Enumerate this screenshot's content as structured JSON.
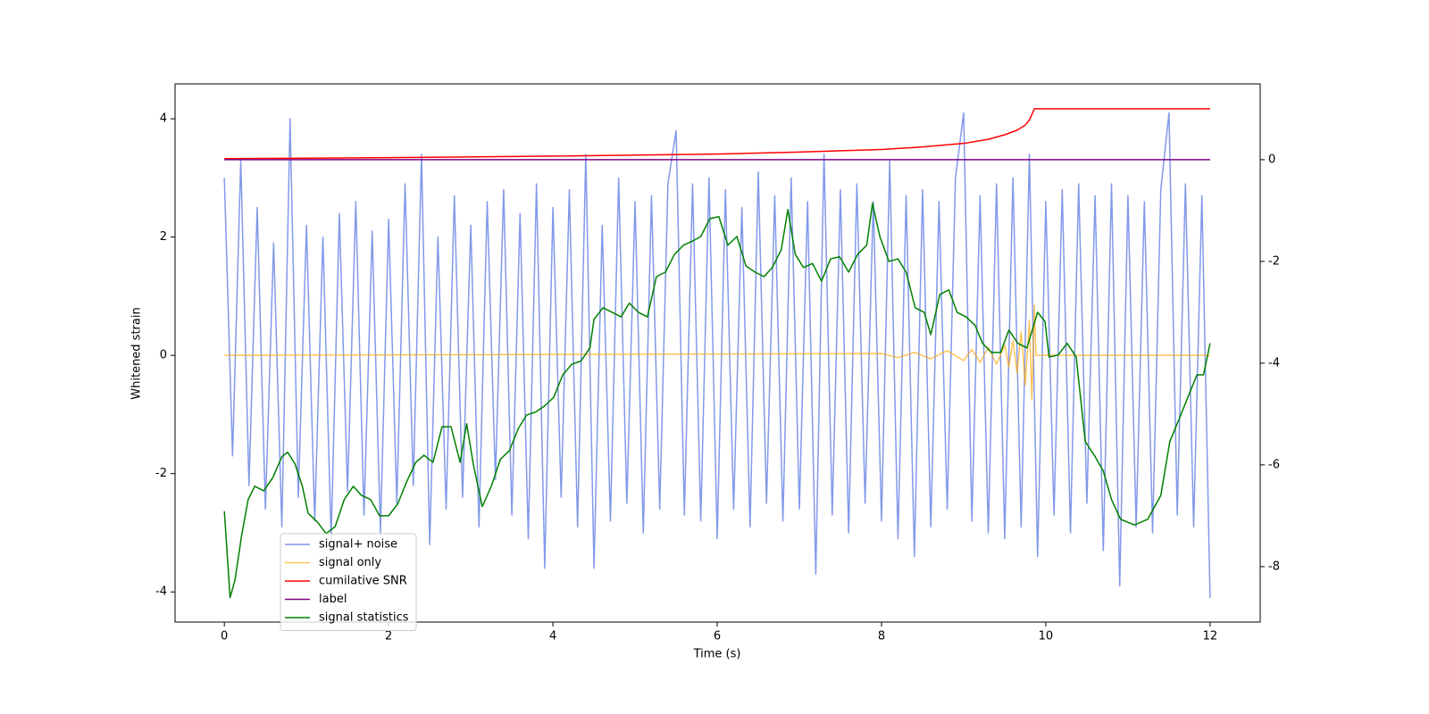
{
  "chart_data": {
    "type": "line",
    "xlabel": "Time (s)",
    "ylabel": "Whitened strain",
    "xlim": [
      -0.6,
      12.61
    ],
    "ylim": [
      -4.51,
      4.59
    ],
    "y2lim": [
      -9.09,
      1.49
    ],
    "xticks": [
      0,
      2,
      4,
      6,
      8,
      10,
      12
    ],
    "yticks": [
      -4,
      -2,
      0,
      2,
      4
    ],
    "y2ticks": [
      -8,
      -6,
      -4,
      -2,
      0
    ],
    "legend": "lower left",
    "series": [
      {
        "name": "signal+ noise",
        "color": "#7b94e8",
        "x": [
          0,
          0.1,
          0.2,
          0.3,
          0.4,
          0.5,
          0.6,
          0.7,
          0.8,
          0.9,
          1,
          1.1,
          1.2,
          1.3,
          1.4,
          1.5,
          1.6,
          1.7,
          1.8,
          1.9,
          2,
          2.1,
          2.2,
          2.3,
          2.4,
          2.5,
          2.6,
          2.7,
          2.8,
          2.9,
          3,
          3.1,
          3.2,
          3.3,
          3.4,
          3.5,
          3.6,
          3.7,
          3.8,
          3.9,
          4,
          4.1,
          4.2,
          4.3,
          4.4,
          4.5,
          4.6,
          4.7,
          4.8,
          4.9,
          5,
          5.1,
          5.2,
          5.3,
          5.4,
          5.5,
          5.6,
          5.7,
          5.8,
          5.9,
          6,
          6.1,
          6.2,
          6.3,
          6.4,
          6.5,
          6.6,
          6.7,
          6.8,
          6.9,
          7,
          7.1,
          7.2,
          7.3,
          7.4,
          7.5,
          7.6,
          7.7,
          7.8,
          7.9,
          8,
          8.1,
          8.2,
          8.3,
          8.4,
          8.5,
          8.6,
          8.7,
          8.8,
          8.9,
          9,
          9.1,
          9.2,
          9.3,
          9.4,
          9.5,
          9.6,
          9.7,
          9.8,
          9.9,
          10,
          10.1,
          10.2,
          10.3,
          10.4,
          10.5,
          10.6,
          10.7,
          10.8,
          10.9,
          11,
          11.1,
          11.2,
          11.3,
          11.4,
          11.5,
          11.6,
          11.7,
          11.8,
          11.9,
          12
        ],
        "values": [
          3.0,
          -1.7,
          3.3,
          -2.2,
          2.5,
          -2.6,
          1.9,
          -2.9,
          4.0,
          -2.4,
          2.2,
          -2.8,
          2.0,
          -3.1,
          2.4,
          -2.3,
          2.6,
          -2.7,
          2.1,
          -3.0,
          2.3,
          -2.5,
          2.9,
          -2.2,
          3.4,
          -3.2,
          2.0,
          -2.6,
          2.7,
          -2.4,
          2.2,
          -2.9,
          2.6,
          -2.1,
          2.8,
          -2.7,
          2.4,
          -3.1,
          2.9,
          -3.6,
          2.5,
          -2.4,
          2.8,
          -2.9,
          3.4,
          -3.6,
          2.2,
          -2.8,
          3.0,
          -2.5,
          2.6,
          -3.0,
          2.7,
          -2.6,
          2.9,
          3.8,
          -2.7,
          2.9,
          -2.8,
          3.0,
          -3.1,
          2.8,
          -2.6,
          2.5,
          -2.9,
          3.1,
          -2.5,
          2.7,
          -2.8,
          3.0,
          -2.6,
          2.6,
          -3.7,
          3.4,
          -2.7,
          2.8,
          -3.0,
          2.9,
          -2.5,
          2.6,
          -2.8,
          3.3,
          -3.1,
          2.7,
          -3.4,
          2.8,
          -2.9,
          2.6,
          -2.6,
          3.0,
          4.1,
          -2.8,
          2.7,
          -3.0,
          2.9,
          -3.1,
          3.0,
          -2.9,
          3.4,
          -3.4,
          2.6,
          -2.7,
          2.8,
          -3.0,
          2.9,
          -2.5,
          2.7,
          -3.3,
          2.9,
          -3.9,
          2.7,
          -2.9,
          2.6,
          -3.0,
          2.8,
          4.1,
          -2.7,
          2.9,
          -2.9,
          2.7,
          -4.1
        ]
      },
      {
        "name": "signal only",
        "color": "#ffa500",
        "x": [
          0,
          8,
          8.2,
          8.4,
          8.6,
          8.8,
          9,
          9.1,
          9.2,
          9.3,
          9.4,
          9.5,
          9.55,
          9.6,
          9.65,
          9.7,
          9.75,
          9.8,
          9.83,
          9.86,
          9.88,
          12
        ],
        "values": [
          0,
          0.03,
          -0.04,
          0.05,
          -0.06,
          0.08,
          -0.09,
          0.1,
          -0.12,
          0.13,
          -0.15,
          0.17,
          -0.2,
          0.25,
          -0.3,
          0.4,
          -0.5,
          0.6,
          -0.75,
          0.85,
          0,
          0
        ]
      },
      {
        "name": "cumilative SNR",
        "color": "#ff0000",
        "axis": "y2",
        "x": [
          0,
          2,
          4,
          6,
          7,
          8,
          8.5,
          9,
          9.3,
          9.5,
          9.65,
          9.75,
          9.8,
          9.84,
          9.86,
          12
        ],
        "values": [
          0.02,
          0.04,
          0.07,
          0.11,
          0.15,
          0.2,
          0.25,
          0.32,
          0.4,
          0.49,
          0.58,
          0.68,
          0.78,
          0.92,
          1.0,
          1.0
        ]
      },
      {
        "name": "label",
        "color": "#800080",
        "axis": "y2",
        "x": [
          0,
          12
        ],
        "values": [
          0,
          0
        ]
      },
      {
        "name": "signal statistics",
        "color": "#008000",
        "axis": "y2",
        "x": [
          0,
          0.07,
          0.13,
          0.21,
          0.29,
          0.37,
          0.48,
          0.59,
          0.7,
          0.77,
          0.86,
          0.95,
          1.02,
          1.13,
          1.24,
          1.35,
          1.46,
          1.57,
          1.67,
          1.78,
          1.89,
          2.0,
          2.11,
          2.22,
          2.33,
          2.43,
          2.54,
          2.65,
          2.76,
          2.87,
          2.95,
          3.03,
          3.14,
          3.25,
          3.36,
          3.47,
          3.58,
          3.68,
          3.79,
          3.9,
          4.01,
          4.12,
          4.23,
          4.34,
          4.45,
          4.5,
          4.61,
          4.72,
          4.83,
          4.93,
          5.04,
          5.15,
          5.26,
          5.37,
          5.48,
          5.59,
          5.7,
          5.8,
          5.91,
          6.02,
          6.13,
          6.24,
          6.35,
          6.46,
          6.57,
          6.67,
          6.78,
          6.86,
          6.95,
          7.05,
          7.16,
          7.27,
          7.38,
          7.49,
          7.6,
          7.71,
          7.82,
          7.89,
          7.98,
          8.09,
          8.2,
          8.3,
          8.41,
          8.52,
          8.6,
          8.71,
          8.82,
          8.92,
          9.03,
          9.14,
          9.23,
          9.34,
          9.45,
          9.55,
          9.66,
          9.77,
          9.9,
          9.99,
          10.04,
          10.15,
          10.26,
          10.37,
          10.48,
          10.59,
          10.7,
          10.8,
          10.91,
          11.08,
          11.24,
          11.4,
          11.51,
          11.62,
          11.73,
          11.84,
          11.92,
          12.0
        ],
        "values": [
          -6.91,
          -8.61,
          -8.26,
          -7.39,
          -6.68,
          -6.42,
          -6.51,
          -6.25,
          -5.84,
          -5.75,
          -5.98,
          -6.42,
          -6.95,
          -7.12,
          -7.35,
          -7.21,
          -6.68,
          -6.42,
          -6.6,
          -6.68,
          -7.0,
          -7.0,
          -6.77,
          -6.33,
          -5.95,
          -5.81,
          -5.95,
          -5.25,
          -5.25,
          -5.95,
          -5.19,
          -5.98,
          -6.82,
          -6.42,
          -5.89,
          -5.72,
          -5.28,
          -5.02,
          -4.96,
          -4.84,
          -4.67,
          -4.23,
          -4.02,
          -3.96,
          -3.7,
          -3.14,
          -2.91,
          -3.0,
          -3.09,
          -2.82,
          -3.0,
          -3.09,
          -2.3,
          -2.21,
          -1.86,
          -1.68,
          -1.6,
          -1.51,
          -1.16,
          -1.12,
          -1.68,
          -1.51,
          -2.09,
          -2.21,
          -2.3,
          -2.12,
          -1.77,
          -0.98,
          -1.86,
          -2.12,
          -2.04,
          -2.39,
          -1.95,
          -1.91,
          -2.21,
          -1.86,
          -1.68,
          -0.86,
          -1.51,
          -2.0,
          -1.95,
          -2.21,
          -2.91,
          -3.0,
          -3.44,
          -2.65,
          -2.56,
          -3.0,
          -3.09,
          -3.26,
          -3.61,
          -3.79,
          -3.79,
          -3.35,
          -3.61,
          -3.7,
          -3.0,
          -3.18,
          -3.88,
          -3.84,
          -3.61,
          -3.88,
          -5.54,
          -5.81,
          -6.12,
          -6.68,
          -7.07,
          -7.18,
          -7.07,
          -6.6,
          -5.54,
          -5.11,
          -4.67,
          -4.23,
          -4.23,
          -3.61
        ]
      }
    ]
  }
}
